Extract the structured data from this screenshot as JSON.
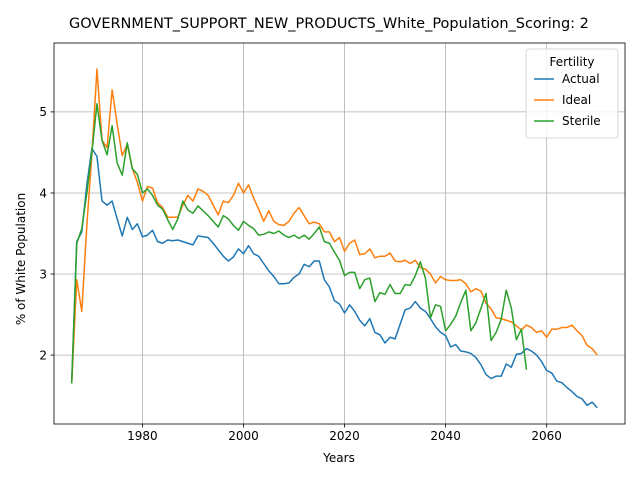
{
  "chart_data": {
    "type": "line",
    "title": "GOVERNMENT_SUPPORT_NEW_PRODUCTS_White_Population_Scoring: 2",
    "xlabel": "Years",
    "ylabel": "% of White Population",
    "xlim": [
      1962.5,
      2075.5
    ],
    "ylim": [
      1.15,
      5.85
    ],
    "xticks": [
      1980,
      2000,
      2020,
      2040,
      2060
    ],
    "yticks": [
      2,
      3,
      4,
      5
    ],
    "grid": true,
    "legend": {
      "title": "Fertility",
      "position": "top-right"
    },
    "series": [
      {
        "name": "Actual",
        "color": "#1f77b4",
        "points": [
          [
            1966,
            1.65
          ],
          [
            1967,
            3.4
          ],
          [
            1968,
            3.52
          ],
          [
            1969,
            4.1
          ],
          [
            1970,
            4.55
          ],
          [
            1971,
            4.45
          ],
          [
            1972,
            3.9
          ],
          [
            1973,
            3.85
          ],
          [
            1974,
            3.9
          ],
          [
            1975,
            3.68
          ],
          [
            1976,
            3.47
          ],
          [
            1977,
            3.7
          ],
          [
            1978,
            3.55
          ],
          [
            1979,
            3.62
          ],
          [
            1980,
            3.46
          ],
          [
            1981,
            3.48
          ],
          [
            1982,
            3.54
          ],
          [
            1983,
            3.4
          ],
          [
            1984,
            3.38
          ],
          [
            1985,
            3.42
          ],
          [
            1986,
            3.41
          ],
          [
            1987,
            3.42
          ],
          [
            1988,
            3.4
          ],
          [
            1989,
            3.38
          ],
          [
            1990,
            3.36
          ],
          [
            1991,
            3.47
          ],
          [
            1992,
            3.46
          ],
          [
            1993,
            3.45
          ],
          [
            1994,
            3.38
          ],
          [
            1995,
            3.3
          ],
          [
            1996,
            3.22
          ],
          [
            1997,
            3.16
          ],
          [
            1998,
            3.21
          ],
          [
            1999,
            3.31
          ],
          [
            2000,
            3.25
          ],
          [
            2001,
            3.35
          ],
          [
            2002,
            3.25
          ],
          [
            2003,
            3.22
          ],
          [
            2004,
            3.13
          ],
          [
            2005,
            3.04
          ],
          [
            2006,
            2.97
          ],
          [
            2007,
            2.88
          ],
          [
            2008,
            2.88
          ],
          [
            2009,
            2.89
          ],
          [
            2010,
            2.96
          ],
          [
            2011,
            3.0
          ],
          [
            2012,
            3.12
          ],
          [
            2013,
            3.09
          ],
          [
            2014,
            3.16
          ],
          [
            2015,
            3.16
          ],
          [
            2016,
            2.93
          ],
          [
            2017,
            2.84
          ],
          [
            2018,
            2.67
          ],
          [
            2019,
            2.63
          ],
          [
            2020,
            2.52
          ],
          [
            2021,
            2.62
          ],
          [
            2022,
            2.54
          ],
          [
            2023,
            2.43
          ],
          [
            2024,
            2.36
          ],
          [
            2025,
            2.45
          ],
          [
            2026,
            2.28
          ],
          [
            2027,
            2.25
          ],
          [
            2028,
            2.15
          ],
          [
            2029,
            2.22
          ],
          [
            2030,
            2.2
          ],
          [
            2031,
            2.38
          ],
          [
            2032,
            2.56
          ],
          [
            2033,
            2.58
          ],
          [
            2034,
            2.66
          ],
          [
            2035,
            2.58
          ],
          [
            2036,
            2.54
          ],
          [
            2037,
            2.45
          ],
          [
            2038,
            2.35
          ],
          [
            2039,
            2.28
          ],
          [
            2040,
            2.24
          ],
          [
            2041,
            2.1
          ],
          [
            2042,
            2.13
          ],
          [
            2043,
            2.05
          ],
          [
            2044,
            2.04
          ],
          [
            2045,
            2.02
          ],
          [
            2046,
            1.97
          ],
          [
            2047,
            1.88
          ],
          [
            2048,
            1.76
          ],
          [
            2049,
            1.71
          ],
          [
            2050,
            1.74
          ],
          [
            2051,
            1.74
          ],
          [
            2052,
            1.89
          ],
          [
            2053,
            1.85
          ],
          [
            2054,
            2.01
          ],
          [
            2055,
            2.02
          ],
          [
            2056,
            2.08
          ],
          [
            2057,
            2.05
          ],
          [
            2058,
            2.0
          ],
          [
            2059,
            1.92
          ],
          [
            2060,
            1.81
          ],
          [
            2061,
            1.78
          ],
          [
            2062,
            1.68
          ],
          [
            2063,
            1.66
          ],
          [
            2064,
            1.6
          ],
          [
            2065,
            1.55
          ],
          [
            2066,
            1.49
          ],
          [
            2067,
            1.46
          ],
          [
            2068,
            1.38
          ],
          [
            2069,
            1.42
          ],
          [
            2070,
            1.35
          ]
        ]
      },
      {
        "name": "Ideal",
        "color": "#ff7f0e",
        "points": [
          [
            1966,
            1.65
          ],
          [
            1967,
            2.93
          ],
          [
            1968,
            2.54
          ],
          [
            1969,
            3.6
          ],
          [
            1970,
            4.48
          ],
          [
            1971,
            5.53
          ],
          [
            1972,
            4.65
          ],
          [
            1973,
            4.56
          ],
          [
            1974,
            5.27
          ],
          [
            1975,
            4.85
          ],
          [
            1976,
            4.46
          ],
          [
            1977,
            4.6
          ],
          [
            1978,
            4.3
          ],
          [
            1979,
            4.13
          ],
          [
            1980,
            3.9
          ],
          [
            1981,
            4.08
          ],
          [
            1982,
            4.06
          ],
          [
            1983,
            3.88
          ],
          [
            1984,
            3.82
          ],
          [
            1985,
            3.7
          ],
          [
            1986,
            3.7
          ],
          [
            1987,
            3.7
          ],
          [
            1988,
            3.85
          ],
          [
            1989,
            3.97
          ],
          [
            1990,
            3.9
          ],
          [
            1991,
            4.05
          ],
          [
            1992,
            4.02
          ],
          [
            1993,
            3.97
          ],
          [
            1994,
            3.85
          ],
          [
            1995,
            3.73
          ],
          [
            1996,
            3.9
          ],
          [
            1997,
            3.88
          ],
          [
            1998,
            3.97
          ],
          [
            1999,
            4.12
          ],
          [
            2000,
            4.0
          ],
          [
            2001,
            4.1
          ],
          [
            2002,
            3.94
          ],
          [
            2003,
            3.8
          ],
          [
            2004,
            3.65
          ],
          [
            2005,
            3.78
          ],
          [
            2006,
            3.65
          ],
          [
            2007,
            3.61
          ],
          [
            2008,
            3.6
          ],
          [
            2009,
            3.65
          ],
          [
            2010,
            3.75
          ],
          [
            2011,
            3.82
          ],
          [
            2012,
            3.72
          ],
          [
            2013,
            3.62
          ],
          [
            2014,
            3.64
          ],
          [
            2015,
            3.62
          ],
          [
            2016,
            3.52
          ],
          [
            2017,
            3.52
          ],
          [
            2018,
            3.4
          ],
          [
            2019,
            3.45
          ],
          [
            2020,
            3.28
          ],
          [
            2021,
            3.38
          ],
          [
            2022,
            3.42
          ],
          [
            2023,
            3.24
          ],
          [
            2024,
            3.25
          ],
          [
            2025,
            3.31
          ],
          [
            2026,
            3.2
          ],
          [
            2027,
            3.22
          ],
          [
            2028,
            3.22
          ],
          [
            2029,
            3.26
          ],
          [
            2030,
            3.16
          ],
          [
            2031,
            3.15
          ],
          [
            2032,
            3.17
          ],
          [
            2033,
            3.13
          ],
          [
            2034,
            3.17
          ],
          [
            2035,
            3.08
          ],
          [
            2036,
            3.06
          ],
          [
            2037,
            3.0
          ],
          [
            2038,
            2.89
          ],
          [
            2039,
            2.97
          ],
          [
            2040,
            2.93
          ],
          [
            2041,
            2.92
          ],
          [
            2042,
            2.92
          ],
          [
            2043,
            2.93
          ],
          [
            2044,
            2.88
          ],
          [
            2045,
            2.78
          ],
          [
            2046,
            2.82
          ],
          [
            2047,
            2.79
          ],
          [
            2048,
            2.64
          ],
          [
            2049,
            2.57
          ],
          [
            2050,
            2.46
          ],
          [
            2051,
            2.45
          ],
          [
            2052,
            2.43
          ],
          [
            2053,
            2.41
          ],
          [
            2054,
            2.36
          ],
          [
            2055,
            2.31
          ],
          [
            2056,
            2.37
          ],
          [
            2057,
            2.34
          ],
          [
            2058,
            2.28
          ],
          [
            2059,
            2.3
          ],
          [
            2060,
            2.22
          ],
          [
            2061,
            2.32
          ],
          [
            2062,
            2.32
          ],
          [
            2063,
            2.34
          ],
          [
            2064,
            2.34
          ],
          [
            2065,
            2.37
          ],
          [
            2066,
            2.3
          ],
          [
            2067,
            2.24
          ],
          [
            2068,
            2.12
          ],
          [
            2069,
            2.08
          ],
          [
            2070,
            2.0
          ]
        ]
      },
      {
        "name": "Sterile",
        "color": "#2ca02c",
        "points": [
          [
            1966,
            1.65
          ],
          [
            1967,
            3.38
          ],
          [
            1968,
            3.56
          ],
          [
            1969,
            4.0
          ],
          [
            1970,
            4.5
          ],
          [
            1971,
            5.1
          ],
          [
            1972,
            4.65
          ],
          [
            1973,
            4.47
          ],
          [
            1974,
            4.83
          ],
          [
            1975,
            4.37
          ],
          [
            1976,
            4.22
          ],
          [
            1977,
            4.62
          ],
          [
            1978,
            4.3
          ],
          [
            1979,
            4.23
          ],
          [
            1980,
            4.0
          ],
          [
            1981,
            4.05
          ],
          [
            1982,
            3.97
          ],
          [
            1983,
            3.85
          ],
          [
            1984,
            3.8
          ],
          [
            1985,
            3.67
          ],
          [
            1986,
            3.55
          ],
          [
            1987,
            3.68
          ],
          [
            1988,
            3.9
          ],
          [
            1989,
            3.79
          ],
          [
            1990,
            3.75
          ],
          [
            1991,
            3.84
          ],
          [
            1992,
            3.78
          ],
          [
            1993,
            3.72
          ],
          [
            1994,
            3.65
          ],
          [
            1995,
            3.58
          ],
          [
            1996,
            3.72
          ],
          [
            1997,
            3.68
          ],
          [
            1998,
            3.6
          ],
          [
            1999,
            3.54
          ],
          [
            2000,
            3.65
          ],
          [
            2001,
            3.6
          ],
          [
            2002,
            3.56
          ],
          [
            2003,
            3.48
          ],
          [
            2004,
            3.49
          ],
          [
            2005,
            3.52
          ],
          [
            2006,
            3.5
          ],
          [
            2007,
            3.53
          ],
          [
            2008,
            3.48
          ],
          [
            2009,
            3.45
          ],
          [
            2010,
            3.48
          ],
          [
            2011,
            3.44
          ],
          [
            2012,
            3.48
          ],
          [
            2013,
            3.43
          ],
          [
            2014,
            3.5
          ],
          [
            2015,
            3.58
          ],
          [
            2016,
            3.4
          ],
          [
            2017,
            3.38
          ],
          [
            2018,
            3.27
          ],
          [
            2019,
            3.17
          ],
          [
            2020,
            2.98
          ],
          [
            2021,
            3.02
          ],
          [
            2022,
            3.02
          ],
          [
            2023,
            2.82
          ],
          [
            2024,
            2.93
          ],
          [
            2025,
            2.95
          ],
          [
            2026,
            2.66
          ],
          [
            2027,
            2.77
          ],
          [
            2028,
            2.75
          ],
          [
            2029,
            2.87
          ],
          [
            2030,
            2.76
          ],
          [
            2031,
            2.76
          ],
          [
            2032,
            2.87
          ],
          [
            2033,
            2.86
          ],
          [
            2034,
            2.98
          ],
          [
            2035,
            3.15
          ],
          [
            2036,
            2.95
          ],
          [
            2037,
            2.46
          ],
          [
            2038,
            2.62
          ],
          [
            2039,
            2.6
          ],
          [
            2040,
            2.3
          ],
          [
            2041,
            2.38
          ],
          [
            2042,
            2.48
          ],
          [
            2043,
            2.65
          ],
          [
            2044,
            2.8
          ],
          [
            2045,
            2.3
          ],
          [
            2046,
            2.4
          ],
          [
            2047,
            2.58
          ],
          [
            2048,
            2.76
          ],
          [
            2049,
            2.18
          ],
          [
            2050,
            2.28
          ],
          [
            2051,
            2.44
          ],
          [
            2052,
            2.8
          ],
          [
            2053,
            2.58
          ],
          [
            2054,
            2.19
          ],
          [
            2055,
            2.32
          ],
          [
            2056,
            1.82
          ]
        ]
      }
    ]
  }
}
